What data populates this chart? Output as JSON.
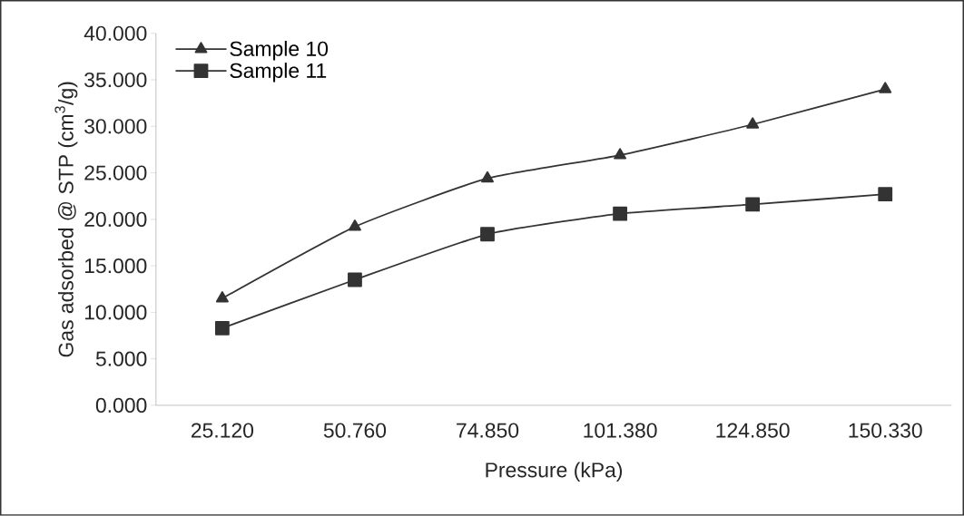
{
  "chart_data": {
    "type": "line",
    "xlabel": "Pressure (kPa)",
    "ylabel": "Gas adsorbed @ STP (cm$^{3}$/g)",
    "categories": [
      "25.120",
      "50.760",
      "74.850",
      "101.380",
      "124.850",
      "150.330"
    ],
    "series": [
      {
        "name": "Sample 10",
        "color": "#333333",
        "marker": "triangle",
        "values": [
          11.5,
          19.2,
          24.4,
          26.9,
          30.2,
          34.0
        ]
      },
      {
        "name": "Sample 11",
        "color": "#333333",
        "marker": "square",
        "values": [
          8.3,
          13.5,
          18.4,
          20.6,
          21.6,
          22.7
        ]
      }
    ],
    "ylim": [
      0,
      40
    ],
    "yticks": [
      {
        "value": 0,
        "label": "0.000"
      },
      {
        "value": 5,
        "label": "5.000"
      },
      {
        "value": 10,
        "label": "10.000"
      },
      {
        "value": 15,
        "label": "15.000"
      },
      {
        "value": 20,
        "label": "20.000"
      },
      {
        "value": 25,
        "label": "25.000"
      },
      {
        "value": 30,
        "label": "30.000"
      },
      {
        "value": 35,
        "label": "35.000"
      },
      {
        "value": 40,
        "label": "40.000"
      }
    ],
    "grid": false,
    "legend": "top left",
    "line_style": "solid"
  }
}
